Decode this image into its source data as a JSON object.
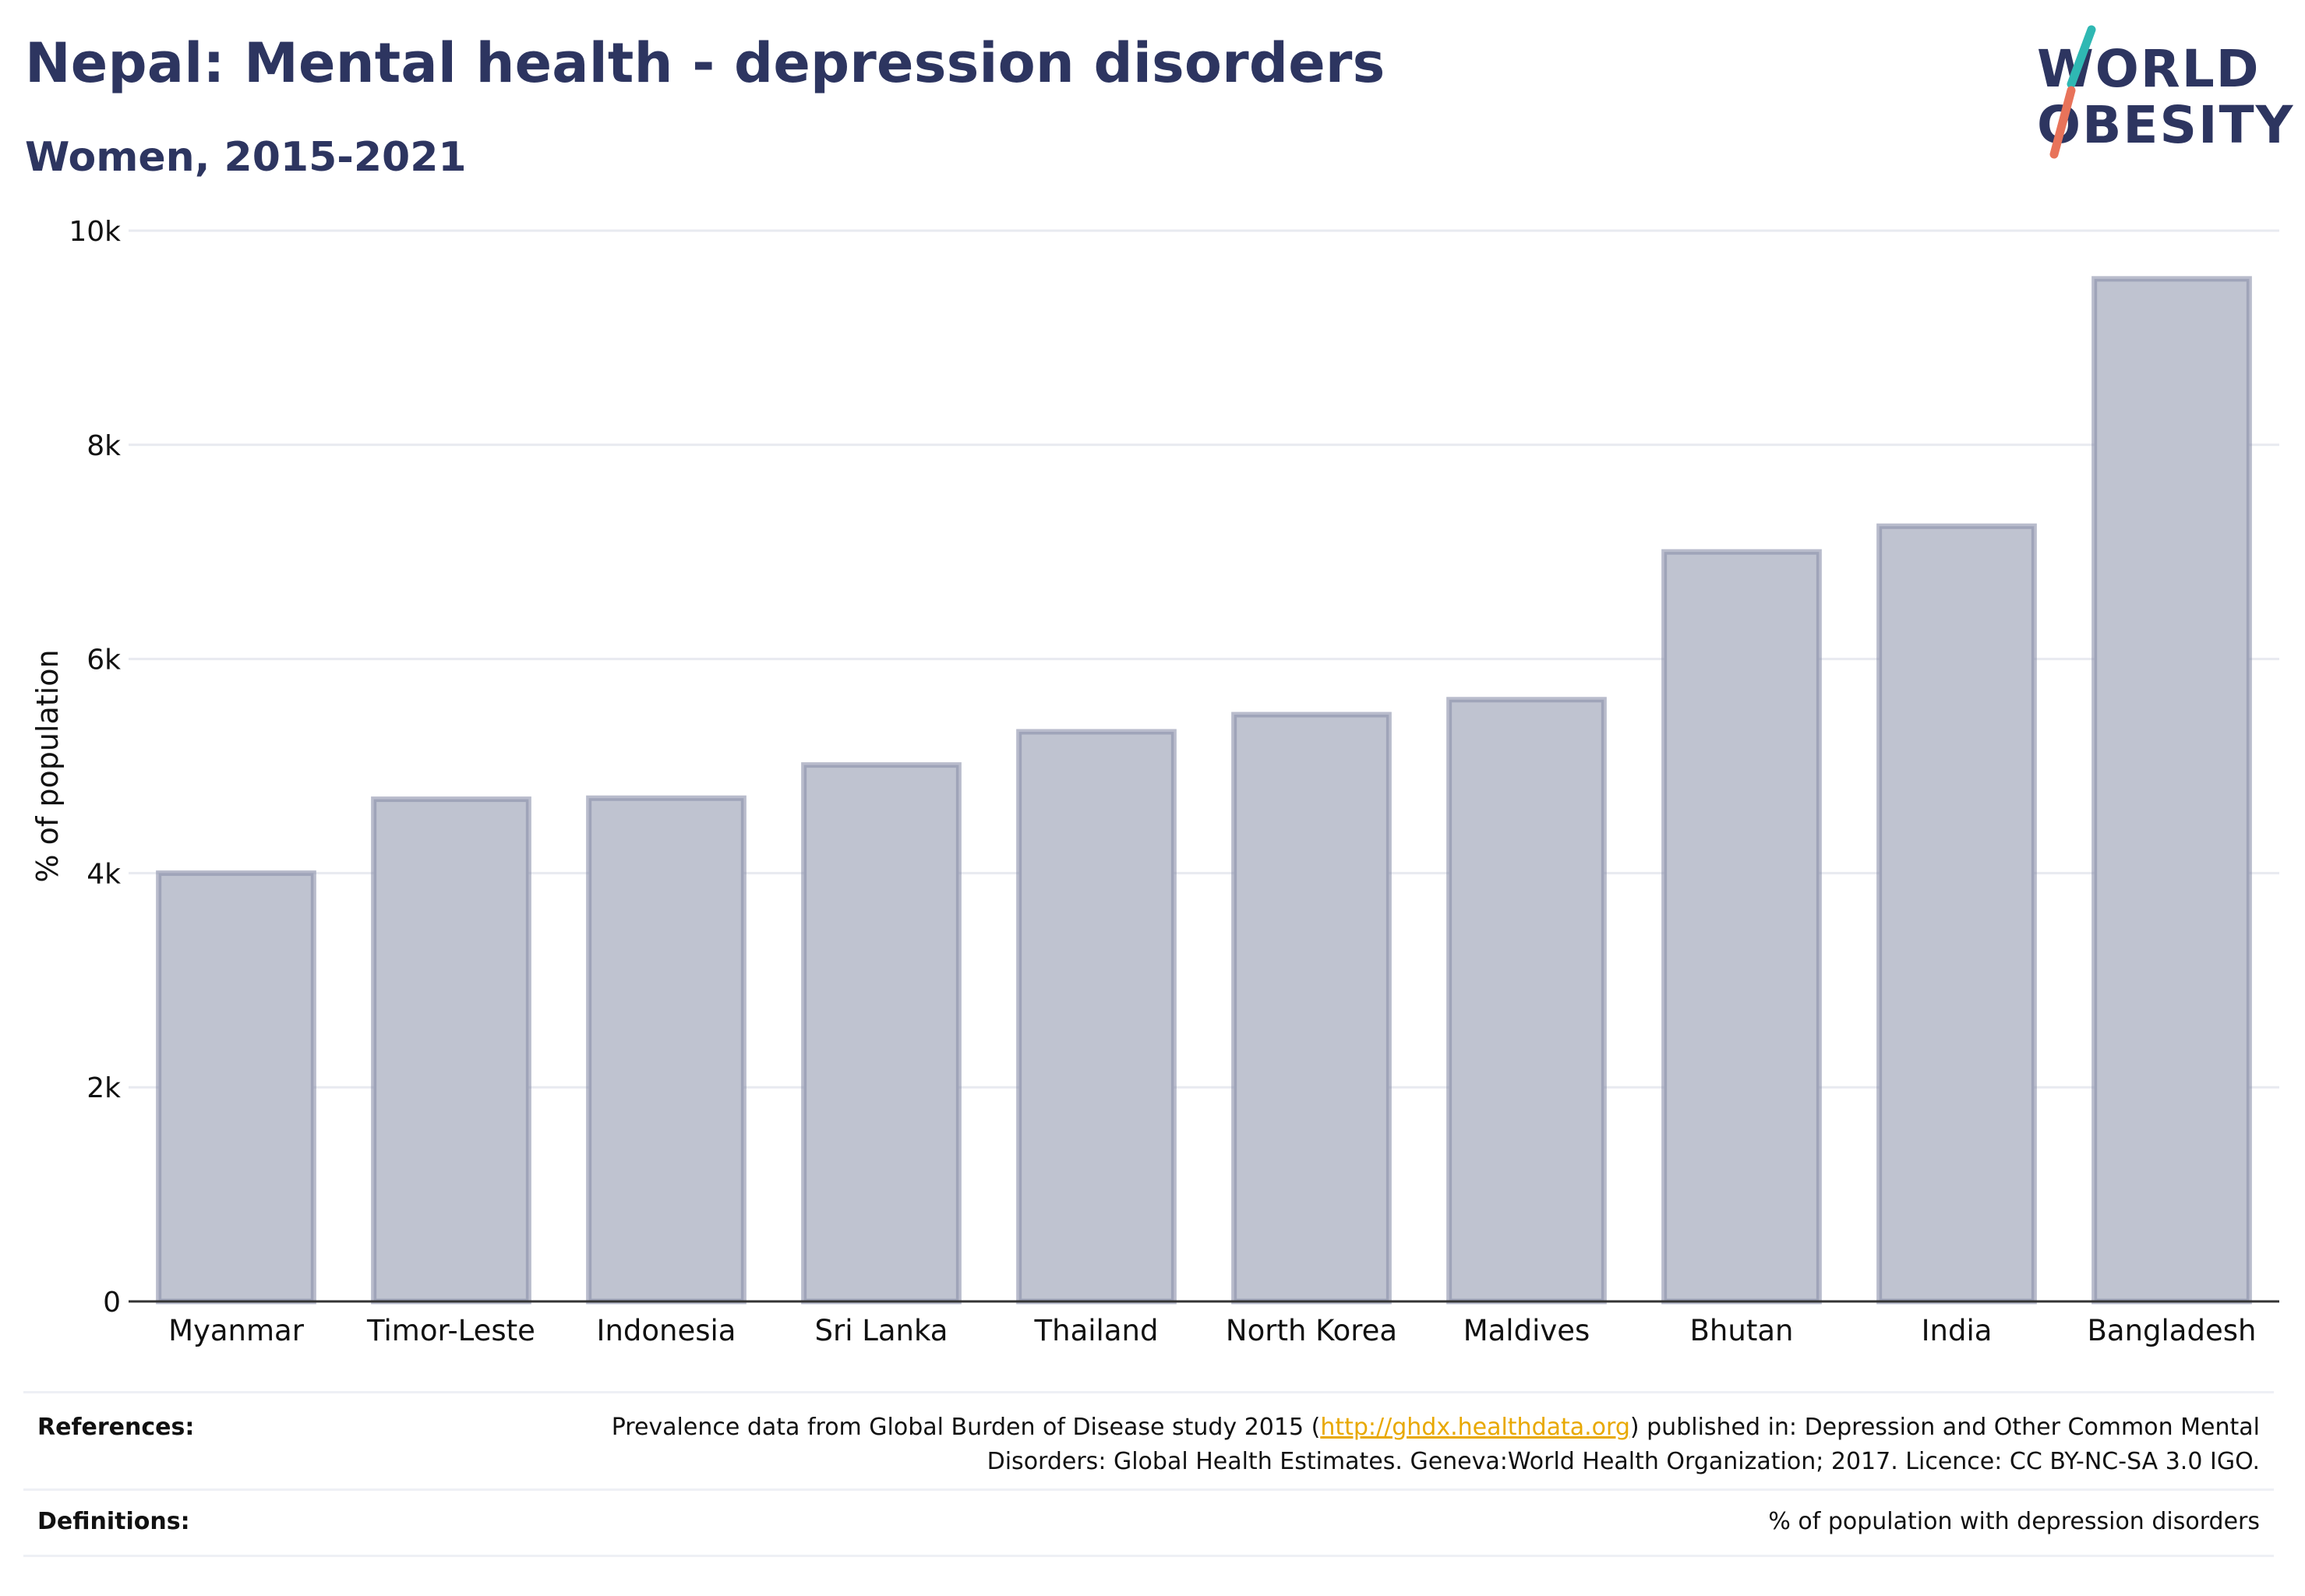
{
  "header": {
    "title": "Nepal: Mental health - depression disorders",
    "subtitle": "Women, 2015-2021"
  },
  "logo": {
    "line1": "WORLD",
    "line2": "OBESITY",
    "accent_colors": [
      "#2fb8b3",
      "#e8735a"
    ]
  },
  "chart_data": {
    "type": "bar",
    "title": "",
    "xlabel": "",
    "ylabel": "% of population",
    "ylim": [
      0,
      10000
    ],
    "yticks": [
      0,
      2000,
      4000,
      6000,
      8000,
      10000
    ],
    "ytick_labels": [
      "0",
      "2k",
      "4k",
      "6k",
      "8k",
      "10k"
    ],
    "grid": true,
    "bar_color": "#bfc3d0",
    "bar_border_color": "#8a90aa",
    "categories": [
      "Myanmar",
      "Timor-Leste",
      "Indonesia",
      "Sri Lanka",
      "Thailand",
      "North Korea",
      "Maldives",
      "Bhutan",
      "India",
      "Bangladesh"
    ],
    "values": [
      4000,
      4690,
      4700,
      5010,
      5320,
      5480,
      5620,
      7000,
      7240,
      9550
    ]
  },
  "footer": {
    "references_label": "References:",
    "references_text_1": "Prevalence data from Global Burden of Disease study 2015 (",
    "references_link": "http://ghdx.healthdata.org",
    "references_text_2": ") published in: Depression and Other Common Mental Disorders: Global Health Estimates. Geneva:World Health Organization; 2017. Licence: CC BY-NC-SA 3.0 IGO.",
    "definitions_label": "Definitions:",
    "definitions_text": "% of population with depression disorders"
  }
}
